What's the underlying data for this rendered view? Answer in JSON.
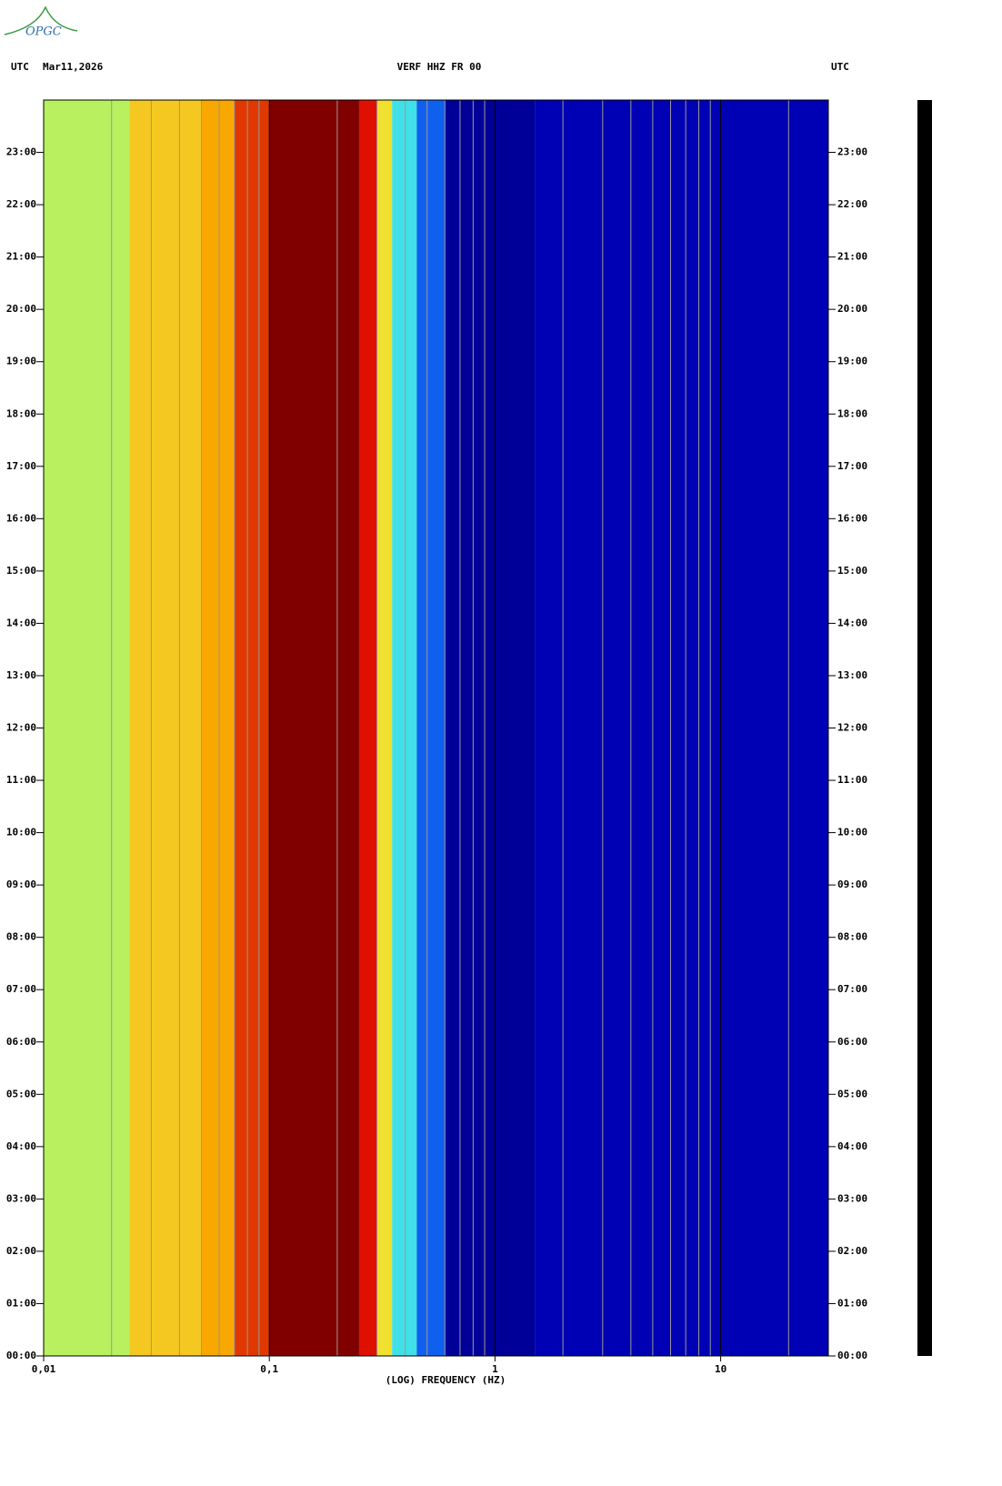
{
  "logo": "OPGC",
  "chart_data": {
    "type": "spectrogram",
    "title": "VERF HHZ FR 00",
    "left_label": "UTC",
    "date": "Mar11,2026",
    "right_label": "UTC",
    "x_label": "(LOG) FREQUENCY (HZ)",
    "x_log": true,
    "xlim": [
      0.01,
      30
    ],
    "xticks": [
      {
        "value": 0.01,
        "label": "0,01"
      },
      {
        "value": 0.1,
        "label": "0,1"
      },
      1,
      10
    ],
    "xgrid": [
      0.02,
      0.03,
      0.04,
      0.05,
      0.06,
      0.07,
      0.08,
      0.09,
      0.2,
      0.3,
      0.4,
      0.5,
      0.6,
      0.7,
      0.8,
      0.9,
      2,
      3,
      4,
      5,
      6,
      7,
      8,
      9,
      20
    ],
    "ylim": [
      0,
      24
    ],
    "yticks": [
      {
        "value": 0,
        "label": "00:00"
      },
      {
        "value": 1,
        "label": "01:00"
      },
      {
        "value": 2,
        "label": "02:00"
      },
      {
        "value": 3,
        "label": "03:00"
      },
      {
        "value": 4,
        "label": "04:00"
      },
      {
        "value": 5,
        "label": "05:00"
      },
      {
        "value": 6,
        "label": "06:00"
      },
      {
        "value": 7,
        "label": "07:00"
      },
      {
        "value": 8,
        "label": "08:00"
      },
      {
        "value": 9,
        "label": "09:00"
      },
      {
        "value": 10,
        "label": "10:00"
      },
      {
        "value": 11,
        "label": "11:00"
      },
      {
        "value": 12,
        "label": "12:00"
      },
      {
        "value": 13,
        "label": "13:00"
      },
      {
        "value": 14,
        "label": "14:00"
      },
      {
        "value": 15,
        "label": "15:00"
      },
      {
        "value": 16,
        "label": "16:00"
      },
      {
        "value": 17,
        "label": "17:00"
      },
      {
        "value": 18,
        "label": "18:00"
      },
      {
        "value": 19,
        "label": "19:00"
      },
      {
        "value": 20,
        "label": "20:00"
      },
      {
        "value": 21,
        "label": "21:00"
      },
      {
        "value": 22,
        "label": "22:00"
      },
      {
        "value": 23,
        "label": "23:00"
      }
    ],
    "bands": {
      "edges": [
        0.01,
        0.024,
        0.05,
        0.07,
        0.1,
        0.25,
        0.3,
        0.35,
        0.45,
        0.6,
        1.5,
        30
      ],
      "colors": [
        "#b8f060",
        "#f4c820",
        "#f8a800",
        "#e03800",
        "#800000",
        "#e01000",
        "#f0e030",
        "#40e0e8",
        "#1060f0",
        "#000098",
        "#0000b4"
      ]
    }
  }
}
